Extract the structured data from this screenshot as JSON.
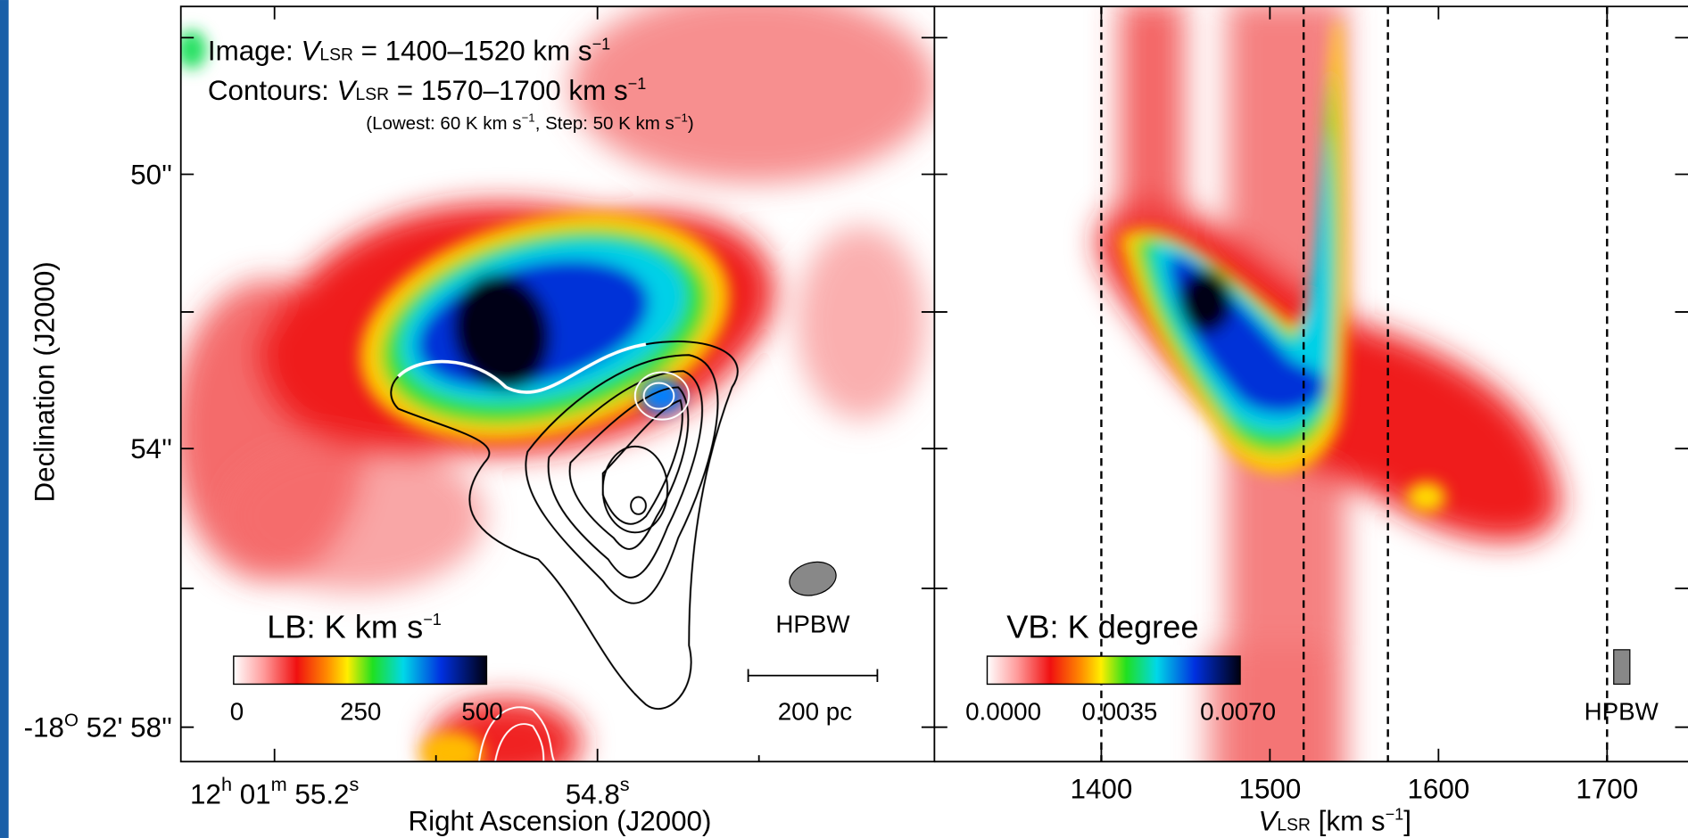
{
  "left_panel": {
    "annotations": {
      "image": [
        "Image: ",
        "V",
        "LSR",
        " = 1400–1520 km s",
        "−1"
      ],
      "contours": [
        "Contours: ",
        "V",
        "LSR",
        " = 1570–1700 km s",
        "−1"
      ],
      "note": [
        "(Lowest: 60 K km s",
        "−1",
        ", Step: 50 K km s",
        "−1",
        ")"
      ]
    },
    "colorbar": {
      "title": [
        "LB: K km s",
        "−1"
      ],
      "ticks": [
        "0",
        "250",
        "500"
      ]
    },
    "beam_label": "HPBW",
    "scale_bar_label": "200 pc",
    "yticks": [
      "50''",
      "54''",
      [
        "-18",
        "O",
        " 52' 58''"
      ]
    ],
    "xticks": [
      [
        "12",
        "h",
        " 01",
        "m",
        " 55.2",
        "s"
      ],
      [
        "54.8",
        "s"
      ]
    ],
    "xlabel": "Right Ascension (J2000)",
    "ylabel": "Declination (J2000)"
  },
  "right_panel": {
    "colorbar": {
      "title": "VB: K degree",
      "ticks": [
        "0.0000",
        "0.0035",
        "0.0070"
      ]
    },
    "beam_label": "HPBW",
    "xlim": [
      1301,
      1748
    ],
    "xticks": [
      1400,
      1500,
      1600,
      1700
    ],
    "vlines": [
      1400,
      1520,
      1570,
      1700
    ],
    "xlabel": [
      "V",
      "LSR",
      " [km s",
      "−1",
      "]"
    ]
  }
}
